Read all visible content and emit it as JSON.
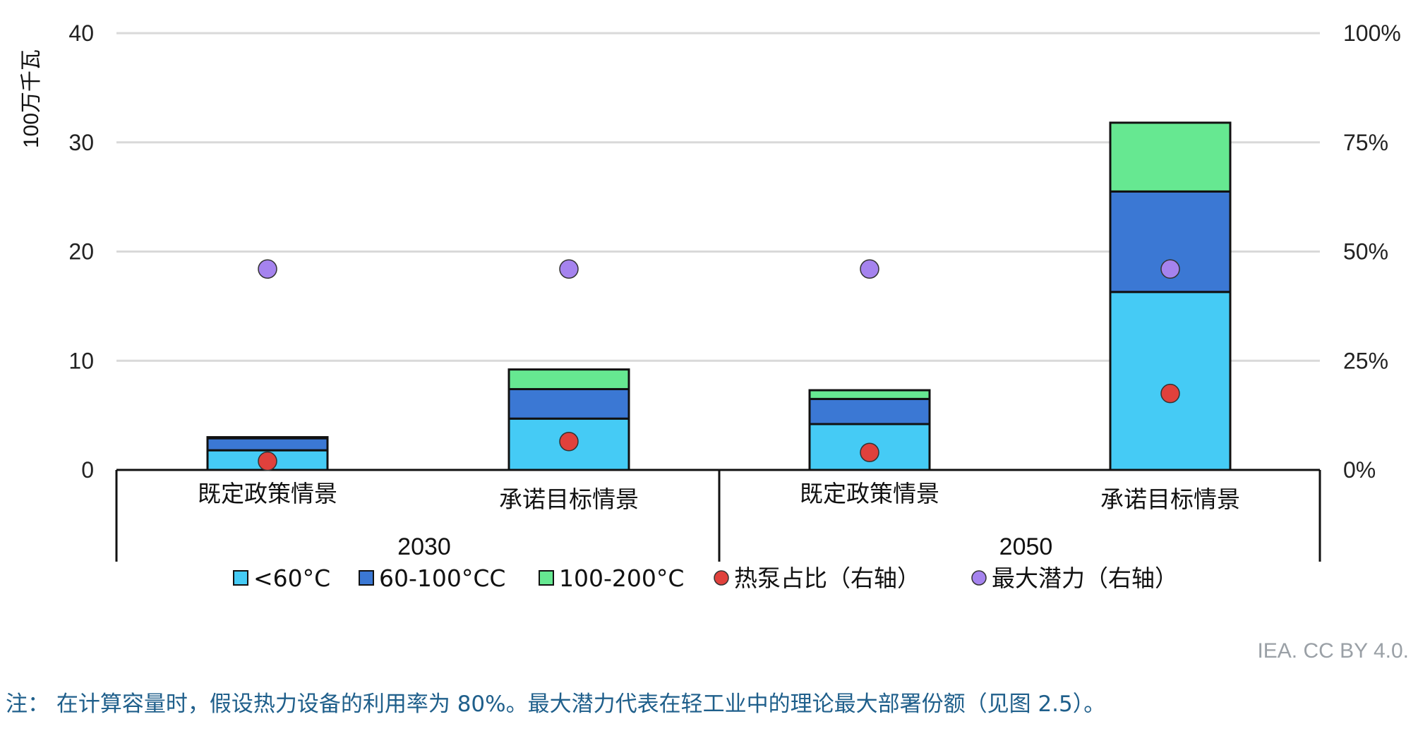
{
  "chart_data": {
    "type": "bar",
    "stacked": true,
    "groups": [
      {
        "label": "2030",
        "categories": [
          "既定政策情景",
          "承诺目标情景"
        ]
      },
      {
        "label": "2050",
        "categories": [
          "既定政策情景",
          "承诺目标情景"
        ]
      }
    ],
    "categories": [
      "既定政策情景",
      "承诺目标情景",
      "既定政策情景",
      "承诺目标情景"
    ],
    "series": [
      {
        "name": "<60°C",
        "type": "bar",
        "axis": "left",
        "color": "#45cbf5",
        "values": [
          1.8,
          4.7,
          4.2,
          16.3
        ]
      },
      {
        "name": "60-100°CC",
        "type": "bar",
        "axis": "left",
        "color": "#3b78d4",
        "values": [
          1.1,
          2.7,
          2.3,
          9.2
        ]
      },
      {
        "name": "100-200°C",
        "type": "bar",
        "axis": "left",
        "color": "#66e891",
        "values": [
          0.1,
          1.8,
          0.8,
          6.3
        ]
      },
      {
        "name": "热泵占比（右轴）",
        "type": "scatter",
        "axis": "right",
        "color": "#e0413c",
        "values": [
          2.0,
          6.5,
          4.0,
          17.5
        ]
      },
      {
        "name": "最大潜力（右轴）",
        "type": "scatter",
        "axis": "right",
        "color": "#a583ee",
        "values": [
          46,
          46,
          46,
          46
        ]
      }
    ],
    "ylabel": "100万千瓦",
    "ylim": [
      0,
      40
    ],
    "yticks": [
      "0",
      "10",
      "20",
      "30",
      "40"
    ],
    "y2lim": [
      0,
      100
    ],
    "y2ticks": [
      "0%",
      "25%",
      "50%",
      "75%",
      "100%"
    ],
    "grid": true,
    "legend_position": "bottom"
  },
  "source": "IEA. CC BY 4.0.",
  "note": "注：  在计算容量时，假设热力设备的利用率为 80%。最大潜力代表在轻工业中的理论最大部署份额（见图 2.5）。"
}
